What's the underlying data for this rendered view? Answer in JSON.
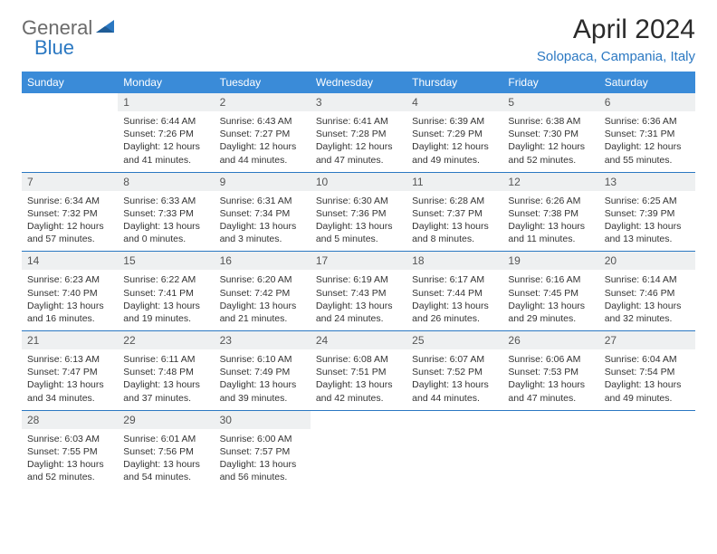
{
  "logo": {
    "text1": "General",
    "text2": "Blue"
  },
  "title": "April 2024",
  "subtitle": "Solopaca, Campania, Italy",
  "colors": {
    "header_bg": "#3a8bd8",
    "header_text": "#ffffff",
    "accent": "#2b78c2",
    "daynum_bg": "#eef0f1",
    "text": "#333333",
    "logo_gray": "#6b6b6b"
  },
  "day_headers": [
    "Sunday",
    "Monday",
    "Tuesday",
    "Wednesday",
    "Thursday",
    "Friday",
    "Saturday"
  ],
  "weeks": [
    [
      null,
      {
        "n": "1",
        "sr": "Sunrise: 6:44 AM",
        "ss": "Sunset: 7:26 PM",
        "d1": "Daylight: 12 hours",
        "d2": "and 41 minutes."
      },
      {
        "n": "2",
        "sr": "Sunrise: 6:43 AM",
        "ss": "Sunset: 7:27 PM",
        "d1": "Daylight: 12 hours",
        "d2": "and 44 minutes."
      },
      {
        "n": "3",
        "sr": "Sunrise: 6:41 AM",
        "ss": "Sunset: 7:28 PM",
        "d1": "Daylight: 12 hours",
        "d2": "and 47 minutes."
      },
      {
        "n": "4",
        "sr": "Sunrise: 6:39 AM",
        "ss": "Sunset: 7:29 PM",
        "d1": "Daylight: 12 hours",
        "d2": "and 49 minutes."
      },
      {
        "n": "5",
        "sr": "Sunrise: 6:38 AM",
        "ss": "Sunset: 7:30 PM",
        "d1": "Daylight: 12 hours",
        "d2": "and 52 minutes."
      },
      {
        "n": "6",
        "sr": "Sunrise: 6:36 AM",
        "ss": "Sunset: 7:31 PM",
        "d1": "Daylight: 12 hours",
        "d2": "and 55 minutes."
      }
    ],
    [
      {
        "n": "7",
        "sr": "Sunrise: 6:34 AM",
        "ss": "Sunset: 7:32 PM",
        "d1": "Daylight: 12 hours",
        "d2": "and 57 minutes."
      },
      {
        "n": "8",
        "sr": "Sunrise: 6:33 AM",
        "ss": "Sunset: 7:33 PM",
        "d1": "Daylight: 13 hours",
        "d2": "and 0 minutes."
      },
      {
        "n": "9",
        "sr": "Sunrise: 6:31 AM",
        "ss": "Sunset: 7:34 PM",
        "d1": "Daylight: 13 hours",
        "d2": "and 3 minutes."
      },
      {
        "n": "10",
        "sr": "Sunrise: 6:30 AM",
        "ss": "Sunset: 7:36 PM",
        "d1": "Daylight: 13 hours",
        "d2": "and 5 minutes."
      },
      {
        "n": "11",
        "sr": "Sunrise: 6:28 AM",
        "ss": "Sunset: 7:37 PM",
        "d1": "Daylight: 13 hours",
        "d2": "and 8 minutes."
      },
      {
        "n": "12",
        "sr": "Sunrise: 6:26 AM",
        "ss": "Sunset: 7:38 PM",
        "d1": "Daylight: 13 hours",
        "d2": "and 11 minutes."
      },
      {
        "n": "13",
        "sr": "Sunrise: 6:25 AM",
        "ss": "Sunset: 7:39 PM",
        "d1": "Daylight: 13 hours",
        "d2": "and 13 minutes."
      }
    ],
    [
      {
        "n": "14",
        "sr": "Sunrise: 6:23 AM",
        "ss": "Sunset: 7:40 PM",
        "d1": "Daylight: 13 hours",
        "d2": "and 16 minutes."
      },
      {
        "n": "15",
        "sr": "Sunrise: 6:22 AM",
        "ss": "Sunset: 7:41 PM",
        "d1": "Daylight: 13 hours",
        "d2": "and 19 minutes."
      },
      {
        "n": "16",
        "sr": "Sunrise: 6:20 AM",
        "ss": "Sunset: 7:42 PM",
        "d1": "Daylight: 13 hours",
        "d2": "and 21 minutes."
      },
      {
        "n": "17",
        "sr": "Sunrise: 6:19 AM",
        "ss": "Sunset: 7:43 PM",
        "d1": "Daylight: 13 hours",
        "d2": "and 24 minutes."
      },
      {
        "n": "18",
        "sr": "Sunrise: 6:17 AM",
        "ss": "Sunset: 7:44 PM",
        "d1": "Daylight: 13 hours",
        "d2": "and 26 minutes."
      },
      {
        "n": "19",
        "sr": "Sunrise: 6:16 AM",
        "ss": "Sunset: 7:45 PM",
        "d1": "Daylight: 13 hours",
        "d2": "and 29 minutes."
      },
      {
        "n": "20",
        "sr": "Sunrise: 6:14 AM",
        "ss": "Sunset: 7:46 PM",
        "d1": "Daylight: 13 hours",
        "d2": "and 32 minutes."
      }
    ],
    [
      {
        "n": "21",
        "sr": "Sunrise: 6:13 AM",
        "ss": "Sunset: 7:47 PM",
        "d1": "Daylight: 13 hours",
        "d2": "and 34 minutes."
      },
      {
        "n": "22",
        "sr": "Sunrise: 6:11 AM",
        "ss": "Sunset: 7:48 PM",
        "d1": "Daylight: 13 hours",
        "d2": "and 37 minutes."
      },
      {
        "n": "23",
        "sr": "Sunrise: 6:10 AM",
        "ss": "Sunset: 7:49 PM",
        "d1": "Daylight: 13 hours",
        "d2": "and 39 minutes."
      },
      {
        "n": "24",
        "sr": "Sunrise: 6:08 AM",
        "ss": "Sunset: 7:51 PM",
        "d1": "Daylight: 13 hours",
        "d2": "and 42 minutes."
      },
      {
        "n": "25",
        "sr": "Sunrise: 6:07 AM",
        "ss": "Sunset: 7:52 PM",
        "d1": "Daylight: 13 hours",
        "d2": "and 44 minutes."
      },
      {
        "n": "26",
        "sr": "Sunrise: 6:06 AM",
        "ss": "Sunset: 7:53 PM",
        "d1": "Daylight: 13 hours",
        "d2": "and 47 minutes."
      },
      {
        "n": "27",
        "sr": "Sunrise: 6:04 AM",
        "ss": "Sunset: 7:54 PM",
        "d1": "Daylight: 13 hours",
        "d2": "and 49 minutes."
      }
    ],
    [
      {
        "n": "28",
        "sr": "Sunrise: 6:03 AM",
        "ss": "Sunset: 7:55 PM",
        "d1": "Daylight: 13 hours",
        "d2": "and 52 minutes."
      },
      {
        "n": "29",
        "sr": "Sunrise: 6:01 AM",
        "ss": "Sunset: 7:56 PM",
        "d1": "Daylight: 13 hours",
        "d2": "and 54 minutes."
      },
      {
        "n": "30",
        "sr": "Sunrise: 6:00 AM",
        "ss": "Sunset: 7:57 PM",
        "d1": "Daylight: 13 hours",
        "d2": "and 56 minutes."
      },
      null,
      null,
      null,
      null
    ]
  ]
}
